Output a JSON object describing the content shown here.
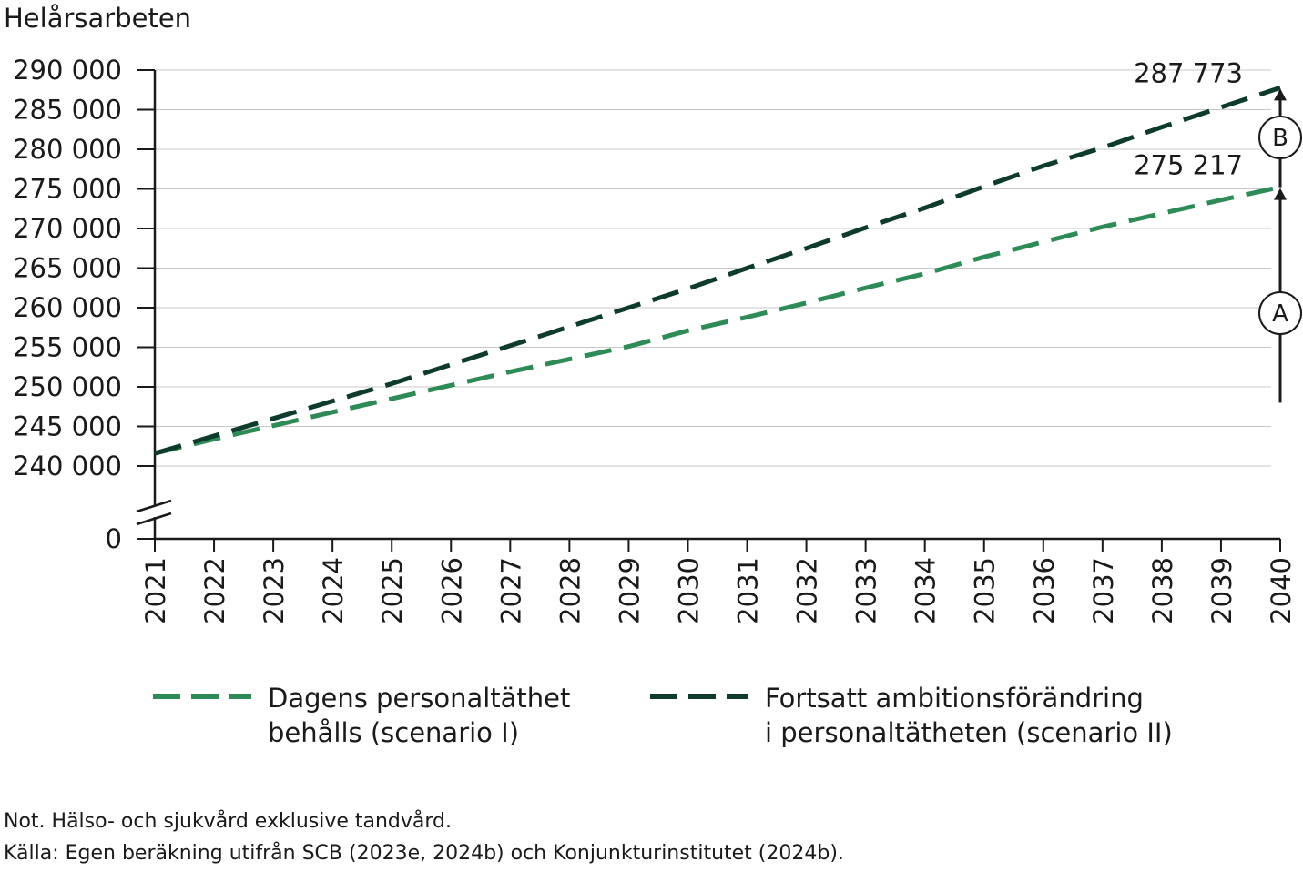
{
  "chart_data": {
    "type": "line",
    "ylabel": "Helårsarbeten",
    "x": [
      2021,
      2022,
      2023,
      2024,
      2025,
      2026,
      2027,
      2028,
      2029,
      2030,
      2031,
      2032,
      2033,
      2034,
      2035,
      2036,
      2037,
      2038,
      2039,
      2040
    ],
    "x_tick_labels": [
      "2021",
      "2022",
      "2023",
      "2024",
      "2025",
      "2026",
      "2027",
      "2028",
      "2029",
      "2030",
      "2031",
      "2032",
      "2033",
      "2034",
      "2035",
      "2036",
      "2037",
      "2038",
      "2039",
      "2040"
    ],
    "y_ticks": [
      240000,
      245000,
      250000,
      255000,
      260000,
      265000,
      270000,
      275000,
      280000,
      285000,
      290000
    ],
    "y_tick_labels": [
      "240 000",
      "245 000",
      "250 000",
      "255 000",
      "260 000",
      "265 000",
      "270 000",
      "275 000",
      "280 000",
      "285 000",
      "290 000"
    ],
    "y_zero_label": "0",
    "y_axis_break": true,
    "ylim": [
      240000,
      290000
    ],
    "grid": true,
    "legend_position": "bottom",
    "series": [
      {
        "name": "Dagens personaltäthet behålls (scenario I)",
        "name_lines": [
          "Dagens personaltäthet",
          "behålls (scenario I)"
        ],
        "color": "#2e8b57",
        "style": "dashed",
        "values": [
          241600,
          243400,
          245100,
          246800,
          248500,
          250200,
          251900,
          253500,
          255100,
          257100,
          258800,
          260600,
          262500,
          264300,
          266400,
          268300,
          270200,
          271900,
          273600,
          275217
        ],
        "end_label": "275 217"
      },
      {
        "name": "Fortsatt ambitionsförändring i personaltätheten (scenario II)",
        "name_lines": [
          "Fortsatt ambitionsförändring",
          "i personaltätheten (scenario II)"
        ],
        "color": "#0f3b2c",
        "style": "dashed",
        "values": [
          241600,
          243800,
          246000,
          248200,
          250400,
          252800,
          255200,
          257600,
          260000,
          262400,
          265000,
          267500,
          270100,
          272600,
          275300,
          277900,
          280200,
          282800,
          285300,
          287773
        ],
        "end_label": "287 773"
      }
    ],
    "annotations": [
      {
        "label": "A",
        "from": 248000,
        "to": 275217
      },
      {
        "label": "B",
        "from": 275217,
        "to": 287773
      }
    ]
  },
  "notes": {
    "not": "Not. Hälso- och sjukvård exklusive tandvård.",
    "kalla": "Källa: Egen beräkning utifrån SCB (2023e, 2024b) och Konjunkturinstitutet (2024b)."
  }
}
